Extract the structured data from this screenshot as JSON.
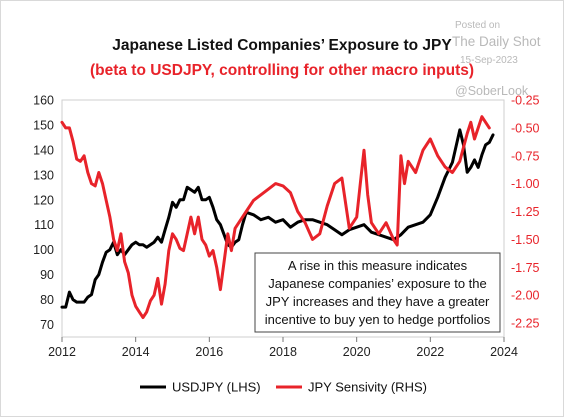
{
  "watermark": {
    "posted": "Posted on",
    "source": "The Daily Shot",
    "date": "15-Sep-2023",
    "handle": "@SoberLook"
  },
  "chart_data": {
    "type": "line",
    "title": "Japanese Listed Companies’ Exposure to JPY",
    "subtitle": "(beta to USDJPY, controlling for other macro inputs)",
    "annotation": [
      "A rise in this measure indicates",
      "Japanese companies’ exposure to the",
      "JPY increases and they have a greater",
      "incentive to buy yen to hedge portfolios"
    ],
    "x_ticks": [
      "2012",
      "2014",
      "2016",
      "2018",
      "2020",
      "2022",
      "2024"
    ],
    "xlim": [
      2012,
      2024
    ],
    "y_left": {
      "ticks": [
        "160",
        "150",
        "140",
        "130",
        "120",
        "110",
        "100",
        "90",
        "80",
        "70"
      ],
      "lim": [
        65,
        160
      ]
    },
    "y_right": {
      "ticks": [
        "-0.25",
        "-0.50",
        "-0.75",
        "-1.00",
        "-1.25",
        "-1.50",
        "-1.75",
        "-2.00",
        "-2.25"
      ],
      "lim": [
        -2.375,
        -0.25
      ]
    },
    "grid": false,
    "legend_position": "bottom",
    "series": [
      {
        "name": "USDJPY (LHS)",
        "axis": "left",
        "color": "#000000",
        "x": [
          2012.0,
          2012.1,
          2012.2,
          2012.3,
          2012.4,
          2012.5,
          2012.6,
          2012.7,
          2012.8,
          2012.9,
          2013.0,
          2013.1,
          2013.2,
          2013.3,
          2013.4,
          2013.5,
          2013.6,
          2013.7,
          2013.8,
          2013.9,
          2014.0,
          2014.1,
          2014.2,
          2014.3,
          2014.4,
          2014.5,
          2014.6,
          2014.7,
          2014.8,
          2014.9,
          2015.0,
          2015.1,
          2015.2,
          2015.3,
          2015.4,
          2015.5,
          2015.6,
          2015.7,
          2015.8,
          2015.9,
          2016.0,
          2016.1,
          2016.2,
          2016.3,
          2016.4,
          2016.5,
          2016.6,
          2016.7,
          2016.8,
          2016.9,
          2017.0,
          2017.2,
          2017.4,
          2017.6,
          2017.8,
          2018.0,
          2018.2,
          2018.4,
          2018.6,
          2018.8,
          2019.0,
          2019.2,
          2019.4,
          2019.6,
          2019.8,
          2020.0,
          2020.2,
          2020.4,
          2020.6,
          2020.8,
          2021.0,
          2021.2,
          2021.4,
          2021.6,
          2021.8,
          2022.0,
          2022.2,
          2022.4,
          2022.6,
          2022.8,
          2022.9,
          2023.0,
          2023.1,
          2023.2,
          2023.3,
          2023.4,
          2023.5,
          2023.6,
          2023.7
        ],
        "values": [
          77,
          77,
          83,
          80,
          79,
          79,
          79,
          81,
          82,
          88,
          90,
          95,
          99,
          100,
          103,
          98,
          100,
          98,
          100,
          102,
          103,
          102,
          102,
          101,
          102,
          103,
          105,
          103,
          108,
          113,
          119,
          117,
          120,
          120,
          125,
          124,
          123,
          125,
          120,
          120,
          121,
          117,
          112,
          110,
          106,
          102,
          101,
          103,
          104,
          110,
          115,
          114,
          112,
          113,
          111,
          112,
          109,
          111,
          112,
          112,
          111,
          110,
          108,
          106,
          108,
          109,
          110,
          107,
          106,
          105,
          104,
          106,
          109,
          110,
          111,
          114,
          121,
          129,
          135,
          148,
          142,
          131,
          133,
          136,
          133,
          138,
          142,
          143,
          146
        ]
      },
      {
        "name": "JPY Sensivity (RHS)",
        "axis": "right",
        "color": "#e8232a",
        "x": [
          2012.0,
          2012.1,
          2012.2,
          2012.3,
          2012.4,
          2012.5,
          2012.6,
          2012.7,
          2012.8,
          2012.9,
          2013.0,
          2013.1,
          2013.2,
          2013.3,
          2013.4,
          2013.5,
          2013.6,
          2013.7,
          2013.8,
          2013.9,
          2014.0,
          2014.1,
          2014.2,
          2014.3,
          2014.4,
          2014.5,
          2014.6,
          2014.7,
          2014.8,
          2014.9,
          2015.0,
          2015.1,
          2015.2,
          2015.3,
          2015.4,
          2015.5,
          2015.6,
          2015.7,
          2015.8,
          2015.9,
          2016.0,
          2016.1,
          2016.2,
          2016.3,
          2016.4,
          2016.5,
          2016.6,
          2016.7,
          2016.8,
          2016.9,
          2017.0,
          2017.2,
          2017.4,
          2017.6,
          2017.8,
          2018.0,
          2018.2,
          2018.4,
          2018.6,
          2018.8,
          2019.0,
          2019.2,
          2019.4,
          2019.6,
          2019.8,
          2020.0,
          2020.1,
          2020.2,
          2020.3,
          2020.4,
          2020.6,
          2020.8,
          2021.0,
          2021.1,
          2021.2,
          2021.3,
          2021.4,
          2021.6,
          2021.8,
          2022.0,
          2022.2,
          2022.4,
          2022.6,
          2022.8,
          2023.0,
          2023.1,
          2023.2,
          2023.3,
          2023.4,
          2023.5,
          2023.6
        ],
        "values": [
          -0.45,
          -0.5,
          -0.5,
          -0.62,
          -0.78,
          -0.8,
          -0.75,
          -0.9,
          -1.0,
          -1.02,
          -0.9,
          -1.0,
          -1.15,
          -1.3,
          -1.5,
          -1.6,
          -1.45,
          -1.7,
          -1.8,
          -2.0,
          -2.1,
          -2.15,
          -2.2,
          -2.15,
          -2.05,
          -2.0,
          -1.85,
          -2.08,
          -1.9,
          -1.6,
          -1.45,
          -1.5,
          -1.58,
          -1.6,
          -1.45,
          -1.3,
          -1.45,
          -1.3,
          -1.5,
          -1.55,
          -1.65,
          -1.6,
          -1.75,
          -1.95,
          -1.7,
          -1.45,
          -1.6,
          -1.4,
          -1.35,
          -1.3,
          -1.25,
          -1.15,
          -1.1,
          -1.05,
          -1.0,
          -1.02,
          -1.08,
          -1.25,
          -1.35,
          -1.5,
          -1.45,
          -1.2,
          -1.0,
          -0.95,
          -1.4,
          -1.3,
          -1.0,
          -0.7,
          -1.1,
          -1.35,
          -1.45,
          -1.35,
          -1.5,
          -1.55,
          -0.75,
          -1.0,
          -0.8,
          -0.9,
          -0.7,
          -0.6,
          -0.75,
          -0.85,
          -0.9,
          -0.8,
          -0.55,
          -0.45,
          -0.6,
          -0.5,
          -0.4,
          -0.45,
          -0.5
        ]
      }
    ]
  }
}
